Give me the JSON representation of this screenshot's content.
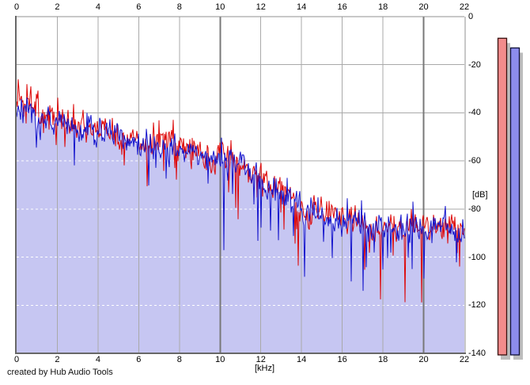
{
  "credit": "created by Hub Audio Tools",
  "axes": {
    "x_unit_label": "[kHz]",
    "y_unit_label": "[dB]",
    "x_ticks": [
      0,
      2,
      4,
      6,
      8,
      10,
      12,
      14,
      16,
      18,
      20,
      22
    ],
    "y_ticks": [
      0,
      -20,
      -40,
      -60,
      -80,
      -100,
      -120,
      -140
    ]
  },
  "colors": {
    "background": "#ffffff",
    "area_fill": "#c6c6f2",
    "minor_grid": "#a9a9a9",
    "major_grid": "#787878",
    "fill_grid_dash": "#ffffff",
    "frame_dark": "#686868",
    "frame_light": "#909090",
    "left_trace": "#dd0606",
    "right_trace": "#1414cc",
    "meter_left_fill": "#f28c8c",
    "meter_left_border": "#38100e",
    "meter_right_fill": "#8c8cec",
    "meter_right_border": "#0e1038",
    "meter_shadow": "#bdbdbd"
  },
  "chart_data": {
    "type": "area",
    "title": "",
    "xlabel": "[kHz]",
    "ylabel": "[dB]",
    "xlim": [
      0,
      22
    ],
    "ylim": [
      -140,
      0
    ],
    "x_ticks": [
      0,
      2,
      4,
      6,
      8,
      10,
      12,
      14,
      16,
      18,
      20,
      22
    ],
    "y_ticks": [
      0,
      -20,
      -40,
      -60,
      -80,
      -100,
      -120,
      -140
    ],
    "grid": true,
    "major_vertical_gridlines_khz": [
      0,
      10,
      20
    ],
    "description": "Stereo audio frequency spectrum: two noisy overlaid traces falling from about -35 dB near 0 kHz to about -90 dB above 16 kHz, with occasional deep notches down to -120 dB; the area under the blue (right channel) trace is filled lavender.",
    "envelope_khz": [
      0,
      1,
      2,
      3,
      4,
      5,
      6,
      7,
      8,
      9,
      10,
      11,
      12,
      13,
      14,
      15,
      16,
      17,
      18,
      19,
      20,
      21,
      22
    ],
    "series": [
      {
        "name": "left-channel-spectrum",
        "color": "#dd0606",
        "envelope_db": [
          -34,
          -40,
          -44,
          -46,
          -47,
          -49,
          -51,
          -52.5,
          -54.5,
          -56.5,
          -58.5,
          -61,
          -67,
          -73,
          -79,
          -82.5,
          -84.5,
          -86,
          -87,
          -86.5,
          -86,
          -87.5,
          -88.5
        ]
      },
      {
        "name": "right-channel-spectrum",
        "color": "#1414cc",
        "area_fill": "#c6c6f2",
        "envelope_db": [
          -35,
          -41,
          -45,
          -47,
          -48,
          -50,
          -52,
          -53.5,
          -55.5,
          -57.5,
          -59.5,
          -62,
          -68,
          -74,
          -80,
          -83.5,
          -85.5,
          -87,
          -88,
          -87.5,
          -87,
          -88.5,
          -89.5
        ]
      }
    ],
    "noise_peak_to_peak_db": 10,
    "deep_notch_depth_db_max": 40,
    "level_meters": [
      {
        "name": "left-level-meter",
        "peak_db": -9,
        "fill": "#f28c8c"
      },
      {
        "name": "right-level-meter",
        "peak_db": -13,
        "fill": "#8c8cec"
      }
    ]
  }
}
